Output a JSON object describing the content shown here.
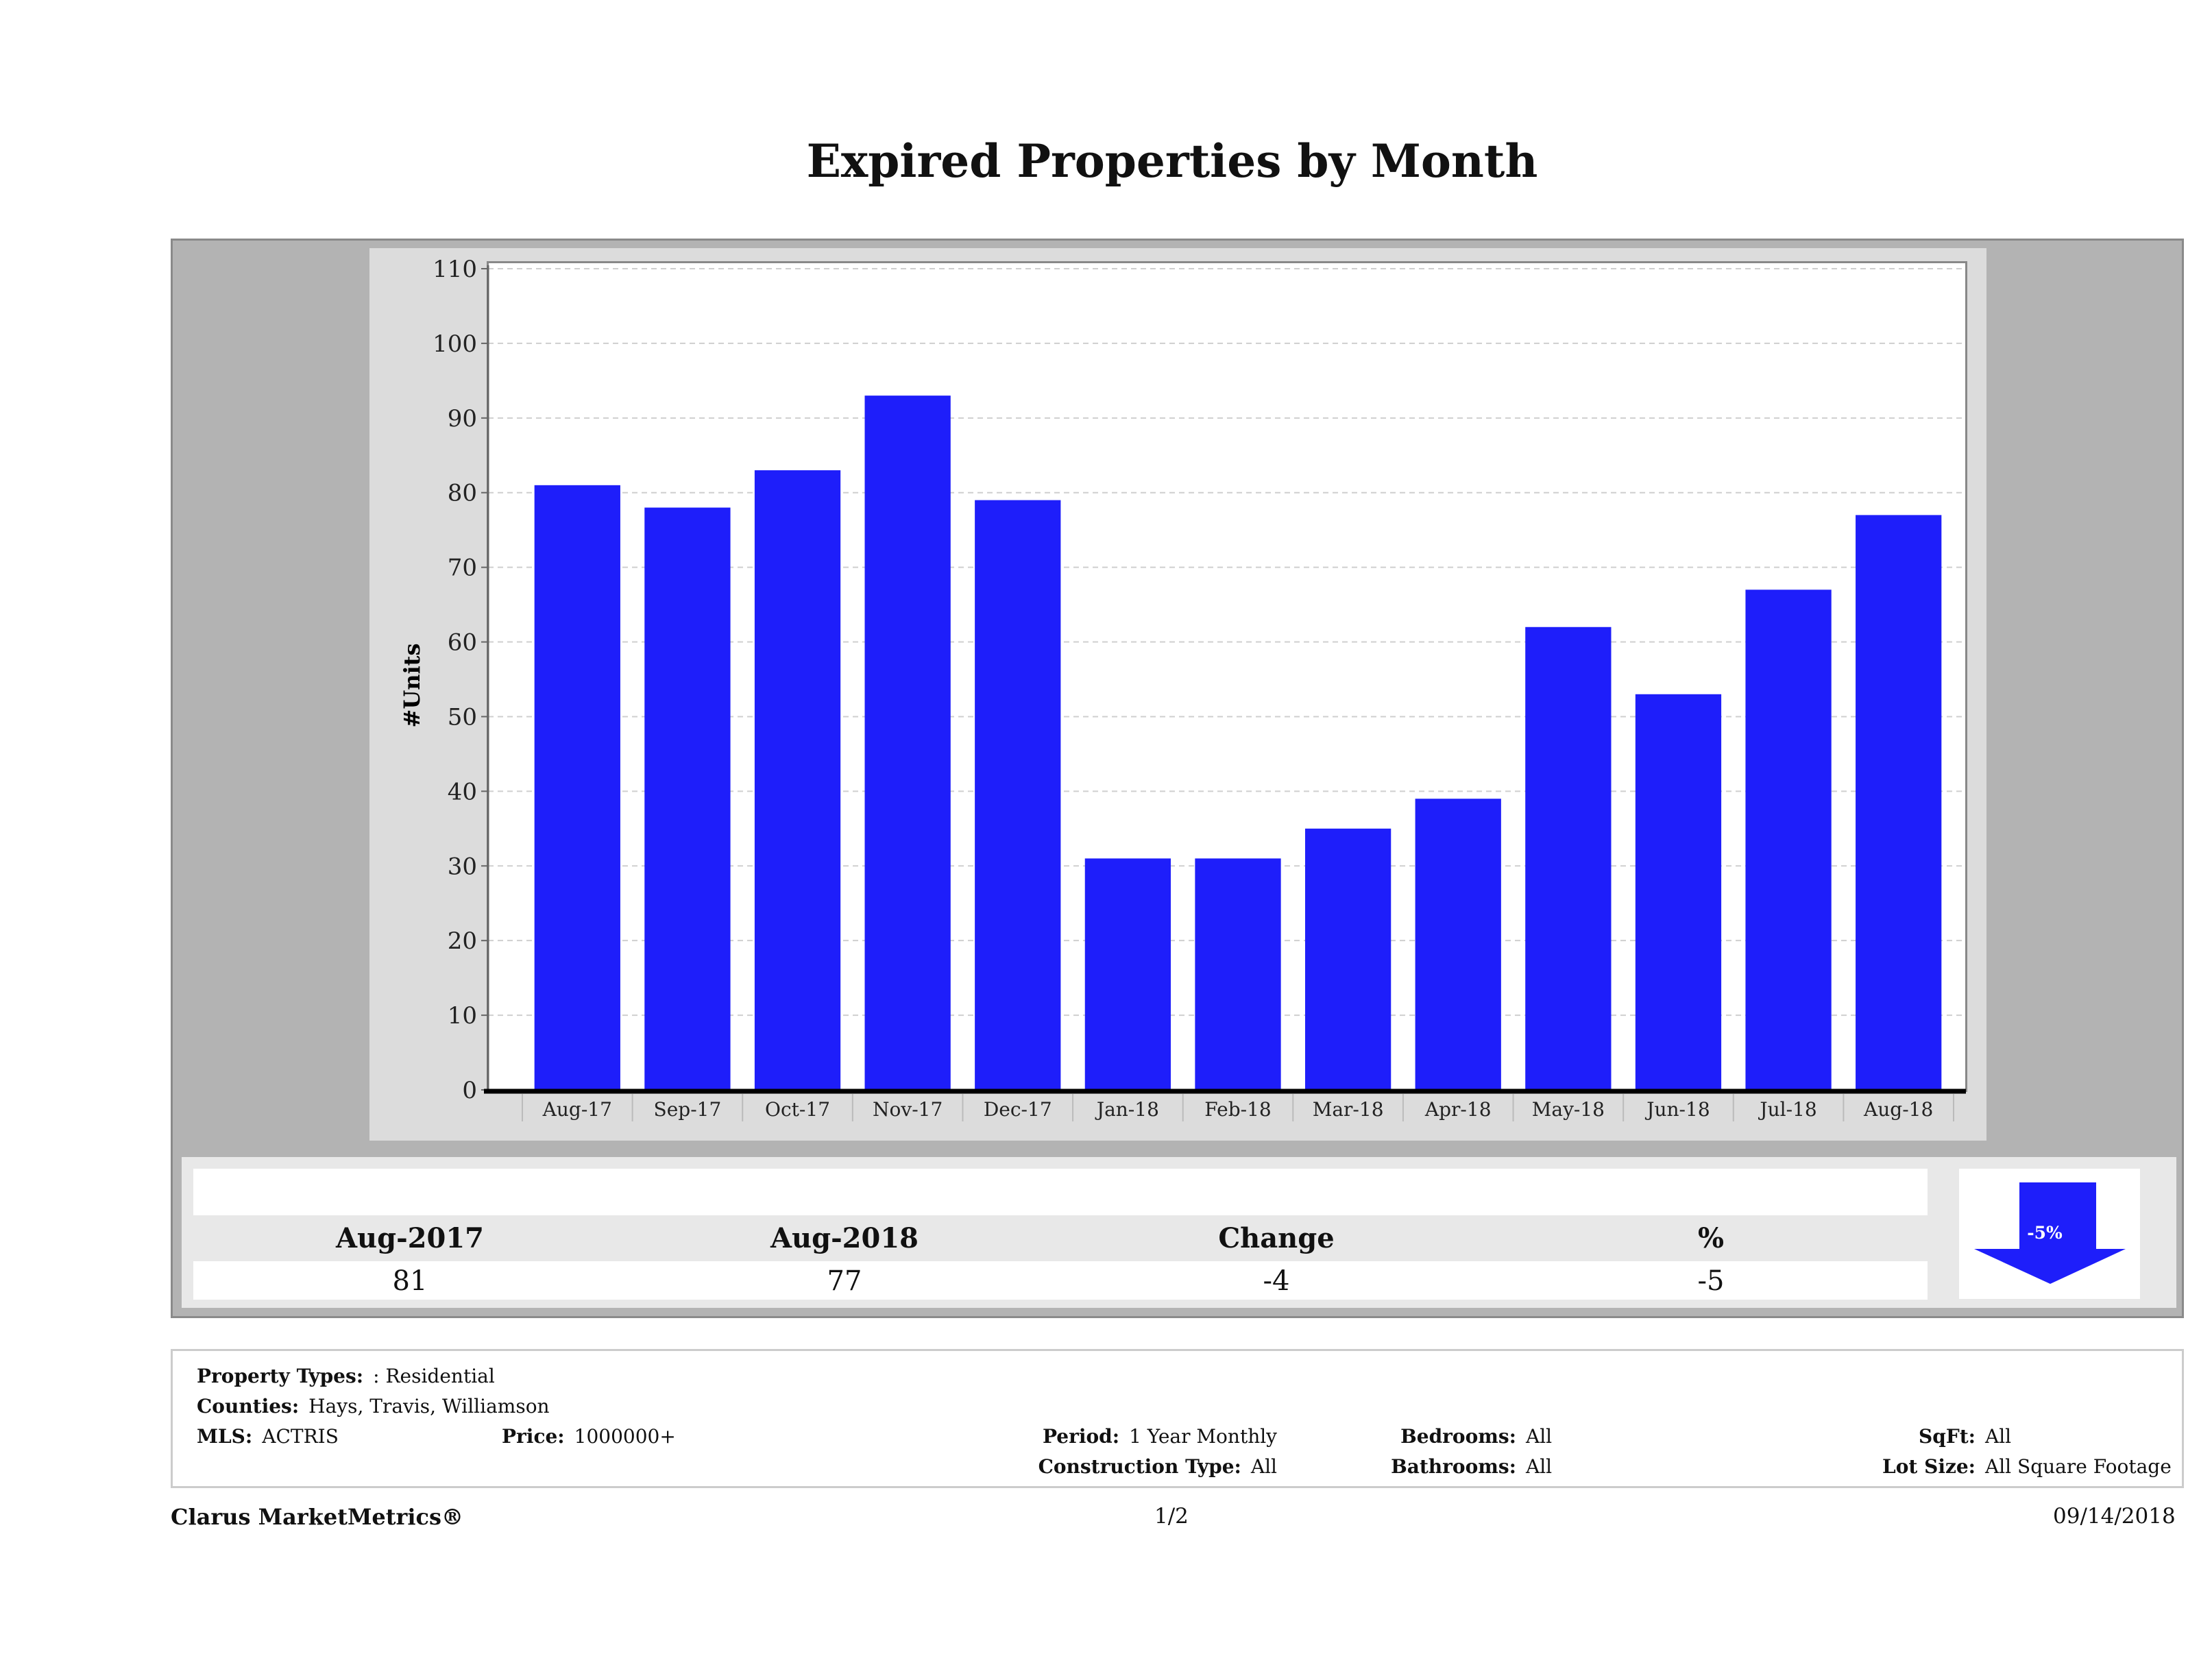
{
  "page": {
    "title": "Expired Properties by Month"
  },
  "chart_data": {
    "type": "bar",
    "title": "Expired Properties by Month",
    "xlabel": "",
    "ylabel": "#Units",
    "ylim": [
      0,
      110
    ],
    "yticks": [
      0,
      10,
      20,
      30,
      40,
      50,
      60,
      70,
      80,
      90,
      100,
      110
    ],
    "grid": true,
    "bar_color": "#1e1efa",
    "categories": [
      "Aug-17",
      "Sep-17",
      "Oct-17",
      "Nov-17",
      "Dec-17",
      "Jan-18",
      "Feb-18",
      "Mar-18",
      "Apr-18",
      "May-18",
      "Jun-18",
      "Jul-18",
      "Aug-18"
    ],
    "values": [
      81,
      78,
      83,
      93,
      79,
      31,
      31,
      35,
      39,
      62,
      53,
      67,
      77
    ]
  },
  "summary": {
    "headers": [
      "Aug-2017",
      "Aug-2018",
      "Change",
      "%"
    ],
    "values": [
      "81",
      "77",
      "-4",
      "-5"
    ],
    "indicator": {
      "label": "-5%",
      "direction": "down",
      "color": "#1e1efa"
    }
  },
  "filters": {
    "property_types_label": "Property Types:",
    "property_types_value": ": Residential",
    "counties_label": "Counties:",
    "counties_value": "Hays, Travis, Williamson",
    "mls_label": "MLS:",
    "mls_value": "ACTRIS",
    "price_label": "Price:",
    "price_value": "1000000+",
    "period_label": "Period:",
    "period_value": "1 Year Monthly",
    "construction_label": "Construction Type:",
    "construction_value": "All",
    "bedrooms_label": "Bedrooms:",
    "bedrooms_value": "All",
    "bathrooms_label": "Bathrooms:",
    "bathrooms_value": "All",
    "sqft_label": "SqFt:",
    "sqft_value": "All",
    "lotsize_label": "Lot Size:",
    "lotsize_value": "All Square Footage"
  },
  "footer": {
    "brand": "Clarus MarketMetrics®",
    "page": "1/2",
    "date": "09/14/2018"
  }
}
